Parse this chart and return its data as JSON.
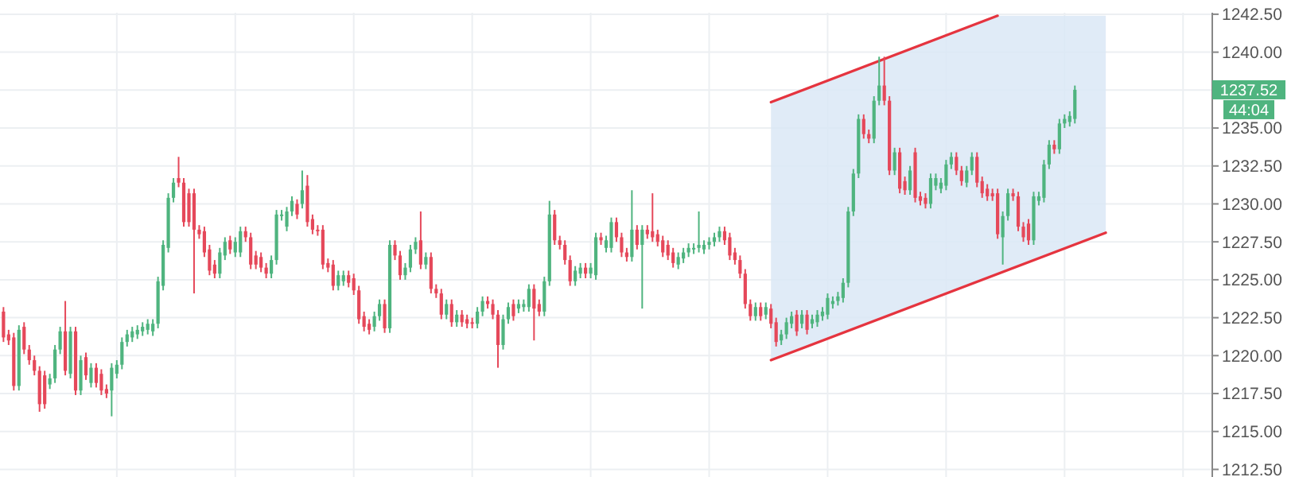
{
  "chart_data": {
    "type": "candlestick",
    "categories": [
      null,
      null,
      null,
      null,
      null,
      null,
      null,
      null,
      null,
      null,
      null,
      null,
      null,
      null,
      null,
      null,
      null,
      null,
      null,
      null,
      null,
      null,
      null,
      null,
      null,
      null,
      null,
      null,
      null,
      null,
      null,
      null,
      null,
      null,
      null,
      null,
      null,
      null,
      null,
      null,
      null,
      null,
      null,
      null,
      null,
      null,
      null,
      null,
      null,
      null,
      null,
      null,
      null,
      null,
      null,
      null,
      null,
      null,
      null,
      null,
      null,
      null,
      null,
      null,
      null,
      null,
      null,
      null,
      null,
      null,
      null,
      null,
      null,
      null,
      null,
      null,
      null,
      null,
      null,
      null,
      null,
      null,
      null,
      null,
      null,
      null,
      null,
      null,
      null,
      null,
      null,
      null,
      null,
      null,
      null,
      null,
      null,
      null,
      null,
      null,
      null,
      null,
      null,
      null,
      null,
      null,
      null,
      null,
      null,
      null,
      null,
      null,
      null,
      null,
      null,
      null,
      null,
      null,
      null,
      null,
      null,
      null,
      null,
      null,
      null,
      null,
      null,
      null,
      null,
      null,
      null,
      null,
      null,
      null,
      null,
      null,
      null,
      null,
      null,
      null,
      null,
      null,
      null,
      null,
      null,
      null,
      null,
      null,
      null,
      null,
      null,
      null,
      null,
      null,
      null,
      null,
      null,
      null,
      null,
      null,
      null,
      null,
      null,
      null,
      null,
      null,
      null,
      null,
      null,
      null,
      null,
      null,
      null,
      null,
      null,
      null,
      null,
      null,
      null,
      null,
      null,
      null,
      null,
      null,
      null,
      null,
      null,
      null,
      null,
      null,
      null,
      null,
      null,
      null,
      null,
      null,
      null,
      null,
      null,
      null,
      null,
      null,
      null,
      null,
      null,
      null,
      null,
      null,
      null,
      null,
      null,
      null,
      null,
      null,
      null,
      null,
      null,
      null,
      null,
      null,
      null,
      null,
      null,
      null,
      null,
      null,
      null,
      null,
      null,
      null,
      null,
      null,
      null,
      null,
      null
    ],
    "ohlc": [
      [
        1222.9,
        1223.2,
        1220.9,
        1221.2
      ],
      [
        1221.4,
        1221.7,
        1220.7,
        1221.0
      ],
      [
        1221.2,
        1221.5,
        1217.7,
        1218.0
      ],
      [
        1218.0,
        1222.0,
        1217.7,
        1221.7
      ],
      [
        1221.9,
        1222.2,
        1220.1,
        1220.4
      ],
      [
        1220.4,
        1220.7,
        1219.4,
        1219.7
      ],
      [
        1219.7,
        1220.0,
        1218.7,
        1219.0
      ],
      [
        1219.0,
        1219.3,
        1216.3,
        1216.8
      ],
      [
        1218.7,
        1219.0,
        1216.5,
        1216.8
      ],
      [
        1218.1,
        1218.8,
        1217.8,
        1218.5
      ],
      [
        1218.5,
        1220.7,
        1218.2,
        1220.4
      ],
      [
        1220.4,
        1221.9,
        1220.1,
        1221.6
      ],
      [
        1221.6,
        1223.6,
        1218.7,
        1219.0
      ],
      [
        1218.8,
        1221.9,
        1218.5,
        1221.6
      ],
      [
        1221.6,
        1221.9,
        1217.4,
        1217.7
      ],
      [
        1217.7,
        1220.0,
        1217.4,
        1219.7
      ],
      [
        1219.9,
        1220.2,
        1218.4,
        1218.7
      ],
      [
        1218.2,
        1219.5,
        1217.9,
        1219.2
      ],
      [
        1219.2,
        1219.5,
        1217.9,
        1218.2
      ],
      [
        1218.8,
        1219.1,
        1217.4,
        1217.7
      ],
      [
        1217.8,
        1218.1,
        1217.2,
        1217.5
      ],
      [
        1217.7,
        1219.5,
        1216.0,
        1219.2
      ],
      [
        1218.8,
        1219.7,
        1218.5,
        1219.4
      ],
      [
        1219.4,
        1221.2,
        1219.1,
        1220.9
      ],
      [
        1220.9,
        1221.7,
        1220.6,
        1221.4
      ],
      [
        1221.2,
        1221.9,
        1220.9,
        1221.6
      ],
      [
        1221.4,
        1222.0,
        1221.1,
        1221.7
      ],
      [
        1221.6,
        1222.2,
        1221.3,
        1221.9
      ],
      [
        1221.7,
        1222.4,
        1221.4,
        1222.1
      ],
      [
        1221.6,
        1222.4,
        1221.3,
        1222.1
      ],
      [
        1222.1,
        1225.2,
        1221.8,
        1224.9
      ],
      [
        1224.6,
        1227.6,
        1224.3,
        1227.3
      ],
      [
        1227.1,
        1230.7,
        1226.8,
        1230.4
      ],
      [
        1230.4,
        1231.7,
        1230.1,
        1231.4
      ],
      [
        1231.7,
        1233.1,
        1231.1,
        1231.4
      ],
      [
        1231.4,
        1231.7,
        1228.5,
        1228.8
      ],
      [
        1230.7,
        1231.0,
        1228.5,
        1228.8
      ],
      [
        1230.7,
        1231.0,
        1224.1,
        1228.3
      ],
      [
        1228.3,
        1228.6,
        1227.7,
        1228.0
      ],
      [
        1228.2,
        1228.5,
        1226.5,
        1226.8
      ],
      [
        1227.0,
        1227.3,
        1225.3,
        1225.6
      ],
      [
        1226.0,
        1226.3,
        1225.1,
        1225.4
      ],
      [
        1225.4,
        1227.1,
        1225.1,
        1226.8
      ],
      [
        1226.6,
        1227.8,
        1226.3,
        1227.5
      ],
      [
        1227.6,
        1227.9,
        1226.7,
        1227.0
      ],
      [
        1226.8,
        1227.8,
        1226.5,
        1227.5
      ],
      [
        1226.8,
        1228.5,
        1226.5,
        1228.2
      ],
      [
        1228.2,
        1228.5,
        1227.5,
        1227.8
      ],
      [
        1227.8,
        1228.1,
        1225.7,
        1226.0
      ],
      [
        1226.6,
        1226.9,
        1225.7,
        1226.0
      ],
      [
        1226.5,
        1226.8,
        1225.5,
        1225.8
      ],
      [
        1225.8,
        1226.1,
        1225.1,
        1225.4
      ],
      [
        1225.4,
        1226.6,
        1225.1,
        1226.3
      ],
      [
        1226.3,
        1229.6,
        1226.0,
        1229.3
      ],
      [
        1229.2,
        1229.6,
        1228.9,
        1229.3
      ],
      [
        1228.5,
        1229.8,
        1228.2,
        1229.5
      ],
      [
        1229.5,
        1230.5,
        1229.2,
        1230.2
      ],
      [
        1230.0,
        1230.3,
        1229.0,
        1229.3
      ],
      [
        1230.0,
        1232.2,
        1229.7,
        1230.9
      ],
      [
        1231.2,
        1231.9,
        1228.5,
        1228.8
      ],
      [
        1229.0,
        1229.3,
        1228.0,
        1228.3
      ],
      [
        1228.3,
        1228.6,
        1227.9,
        1228.2
      ],
      [
        1228.3,
        1228.6,
        1225.7,
        1226.0
      ],
      [
        1226.1,
        1226.4,
        1225.5,
        1225.8
      ],
      [
        1226.0,
        1226.3,
        1224.3,
        1224.6
      ],
      [
        1224.6,
        1225.6,
        1224.3,
        1225.3
      ],
      [
        1224.9,
        1225.6,
        1224.6,
        1225.3
      ],
      [
        1225.3,
        1225.6,
        1224.5,
        1224.8
      ],
      [
        1225.1,
        1225.4,
        1224.0,
        1224.3
      ],
      [
        1224.3,
        1224.6,
        1222.1,
        1222.4
      ],
      [
        1222.6,
        1222.9,
        1221.6,
        1221.9
      ],
      [
        1222.1,
        1222.4,
        1221.4,
        1221.7
      ],
      [
        1221.9,
        1222.9,
        1221.6,
        1222.6
      ],
      [
        1222.6,
        1223.7,
        1222.3,
        1223.4
      ],
      [
        1223.4,
        1223.7,
        1221.5,
        1221.8
      ],
      [
        1221.8,
        1227.6,
        1221.5,
        1227.3
      ],
      [
        1227.3,
        1227.6,
        1226.3,
        1226.6
      ],
      [
        1226.6,
        1226.9,
        1225.0,
        1225.3
      ],
      [
        1225.3,
        1226.1,
        1225.0,
        1225.8
      ],
      [
        1225.8,
        1227.3,
        1225.5,
        1227.0
      ],
      [
        1227.0,
        1227.8,
        1226.7,
        1227.5
      ],
      [
        1227.6,
        1229.5,
        1225.7,
        1226.0
      ],
      [
        1226.0,
        1226.8,
        1225.7,
        1226.5
      ],
      [
        1226.5,
        1226.8,
        1224.1,
        1224.4
      ],
      [
        1224.4,
        1224.7,
        1223.8,
        1224.1
      ],
      [
        1224.1,
        1224.4,
        1222.4,
        1222.7
      ],
      [
        1222.7,
        1223.7,
        1222.4,
        1223.4
      ],
      [
        1223.4,
        1223.7,
        1221.9,
        1222.2
      ],
      [
        1222.2,
        1223.0,
        1221.9,
        1222.7
      ],
      [
        1222.7,
        1223.0,
        1221.9,
        1222.2
      ],
      [
        1222.4,
        1222.7,
        1221.8,
        1222.1
      ],
      [
        1222.2,
        1222.5,
        1221.8,
        1222.1
      ],
      [
        1222.1,
        1223.2,
        1221.8,
        1222.9
      ],
      [
        1222.9,
        1223.9,
        1222.6,
        1223.6
      ],
      [
        1223.6,
        1223.9,
        1223.1,
        1223.4
      ],
      [
        1223.4,
        1223.7,
        1222.4,
        1222.7
      ],
      [
        1222.7,
        1223.0,
        1219.2,
        1220.7
      ],
      [
        1220.7,
        1222.7,
        1220.4,
        1222.4
      ],
      [
        1222.4,
        1223.5,
        1222.1,
        1223.2
      ],
      [
        1223.4,
        1223.7,
        1222.3,
        1222.6
      ],
      [
        1223.1,
        1223.7,
        1222.8,
        1223.4
      ],
      [
        1223.2,
        1223.7,
        1222.9,
        1223.4
      ],
      [
        1223.2,
        1224.7,
        1222.9,
        1224.4
      ],
      [
        1224.4,
        1224.7,
        1221.0,
        1223.1
      ],
      [
        1223.4,
        1223.7,
        1222.6,
        1222.9
      ],
      [
        1222.9,
        1225.2,
        1222.6,
        1224.9
      ],
      [
        1224.9,
        1230.2,
        1224.6,
        1229.3
      ],
      [
        1229.3,
        1229.6,
        1227.3,
        1227.6
      ],
      [
        1227.6,
        1227.9,
        1227.0,
        1227.3
      ],
      [
        1227.3,
        1227.6,
        1226.0,
        1226.3
      ],
      [
        1226.3,
        1226.6,
        1224.6,
        1224.9
      ],
      [
        1224.9,
        1225.9,
        1224.6,
        1225.6
      ],
      [
        1225.4,
        1226.1,
        1225.1,
        1225.8
      ],
      [
        1225.8,
        1226.1,
        1225.1,
        1225.4
      ],
      [
        1225.4,
        1226.1,
        1225.1,
        1225.8
      ],
      [
        1225.3,
        1228.1,
        1225.0,
        1227.8
      ],
      [
        1227.8,
        1228.1,
        1227.3,
        1227.6
      ],
      [
        1227.1,
        1227.9,
        1226.8,
        1227.6
      ],
      [
        1227.1,
        1229.1,
        1226.8,
        1228.8
      ],
      [
        1228.8,
        1229.1,
        1227.5,
        1227.8
      ],
      [
        1227.8,
        1228.1,
        1226.5,
        1226.8
      ],
      [
        1226.8,
        1227.1,
        1226.2,
        1226.5
      ],
      [
        1226.5,
        1230.9,
        1226.2,
        1228.3
      ],
      [
        1228.3,
        1228.6,
        1227.0,
        1227.3
      ],
      [
        1227.3,
        1228.6,
        1223.1,
        1228.3
      ],
      [
        1228.3,
        1228.6,
        1227.7,
        1228.0
      ],
      [
        1228.2,
        1230.7,
        1227.5,
        1227.8
      ],
      [
        1228.0,
        1228.3,
        1227.2,
        1227.5
      ],
      [
        1227.6,
        1227.9,
        1226.5,
        1226.8
      ],
      [
        1227.3,
        1227.6,
        1226.3,
        1226.6
      ],
      [
        1226.8,
        1227.1,
        1225.8,
        1226.1
      ],
      [
        1226.0,
        1226.8,
        1225.7,
        1226.5
      ],
      [
        1226.4,
        1227.1,
        1226.1,
        1226.8
      ],
      [
        1226.8,
        1227.4,
        1226.5,
        1227.1
      ],
      [
        1227.0,
        1227.4,
        1226.7,
        1227.1
      ],
      [
        1227.1,
        1229.5,
        1226.8,
        1227.3
      ],
      [
        1227.0,
        1227.6,
        1226.7,
        1227.3
      ],
      [
        1227.3,
        1227.8,
        1227.0,
        1227.5
      ],
      [
        1227.5,
        1228.1,
        1227.2,
        1227.8
      ],
      [
        1227.8,
        1228.5,
        1227.5,
        1228.2
      ],
      [
        1228.2,
        1228.5,
        1227.3,
        1227.6
      ],
      [
        1227.8,
        1228.1,
        1226.3,
        1226.6
      ],
      [
        1226.8,
        1227.1,
        1226.0,
        1226.3
      ],
      [
        1226.3,
        1226.6,
        1225.1,
        1225.4
      ],
      [
        1225.4,
        1225.7,
        1223.1,
        1223.4
      ],
      [
        1223.4,
        1223.7,
        1222.3,
        1222.6
      ],
      [
        1222.6,
        1223.5,
        1222.3,
        1223.2
      ],
      [
        1223.2,
        1223.5,
        1222.3,
        1222.6
      ],
      [
        1222.7,
        1223.5,
        1222.4,
        1223.2
      ],
      [
        1223.1,
        1223.4,
        1221.8,
        1222.1
      ],
      [
        1222.2,
        1222.5,
        1220.6,
        1220.9
      ],
      [
        1221.0,
        1221.7,
        1220.7,
        1221.4
      ],
      [
        1221.4,
        1222.5,
        1221.1,
        1222.2
      ],
      [
        1222.1,
        1222.9,
        1221.8,
        1222.6
      ],
      [
        1222.7,
        1223.0,
        1221.3,
        1221.6
      ],
      [
        1222.1,
        1223.0,
        1221.8,
        1222.7
      ],
      [
        1222.7,
        1223.0,
        1221.4,
        1221.7
      ],
      [
        1222.1,
        1222.7,
        1221.8,
        1222.4
      ],
      [
        1222.2,
        1223.0,
        1221.9,
        1222.7
      ],
      [
        1222.6,
        1223.2,
        1222.3,
        1222.9
      ],
      [
        1222.7,
        1224.1,
        1222.4,
        1223.8
      ],
      [
        1223.4,
        1223.9,
        1223.1,
        1223.6
      ],
      [
        1223.6,
        1224.2,
        1223.3,
        1223.9
      ],
      [
        1223.8,
        1225.1,
        1223.5,
        1224.8
      ],
      [
        1224.8,
        1229.8,
        1224.5,
        1229.5
      ],
      [
        1229.5,
        1232.3,
        1229.2,
        1232.0
      ],
      [
        1232.0,
        1235.9,
        1231.7,
        1235.6
      ],
      [
        1235.6,
        1235.9,
        1234.3,
        1234.6
      ],
      [
        1234.6,
        1234.9,
        1234.0,
        1234.3
      ],
      [
        1234.3,
        1237.1,
        1234.0,
        1236.8
      ],
      [
        1236.8,
        1239.7,
        1236.5,
        1237.8
      ],
      [
        1237.8,
        1239.7,
        1236.5,
        1236.8
      ],
      [
        1236.8,
        1237.1,
        1231.9,
        1232.2
      ],
      [
        1232.2,
        1233.7,
        1231.9,
        1233.4
      ],
      [
        1233.4,
        1233.7,
        1230.7,
        1231.0
      ],
      [
        1231.5,
        1231.8,
        1230.6,
        1230.9
      ],
      [
        1230.9,
        1232.5,
        1230.6,
        1232.2
      ],
      [
        1233.4,
        1233.7,
        1230.1,
        1230.4
      ],
      [
        1230.5,
        1230.8,
        1229.9,
        1230.2
      ],
      [
        1230.4,
        1230.7,
        1229.7,
        1230.0
      ],
      [
        1230.0,
        1232.0,
        1229.7,
        1231.7
      ],
      [
        1231.2,
        1232.0,
        1230.9,
        1231.7
      ],
      [
        1231.0,
        1231.7,
        1230.7,
        1231.4
      ],
      [
        1231.2,
        1232.9,
        1230.9,
        1232.6
      ],
      [
        1232.6,
        1233.4,
        1232.3,
        1233.1
      ],
      [
        1233.1,
        1233.4,
        1231.9,
        1232.2
      ],
      [
        1232.2,
        1232.5,
        1231.2,
        1231.5
      ],
      [
        1231.4,
        1232.5,
        1231.1,
        1232.2
      ],
      [
        1232.2,
        1233.4,
        1231.9,
        1233.1
      ],
      [
        1233.1,
        1233.4,
        1231.1,
        1231.4
      ],
      [
        1231.5,
        1231.8,
        1230.4,
        1230.7
      ],
      [
        1231.0,
        1231.3,
        1230.2,
        1230.5
      ],
      [
        1230.7,
        1231.0,
        1230.2,
        1230.5
      ],
      [
        1230.7,
        1231.0,
        1227.7,
        1228.0
      ],
      [
        1227.8,
        1229.5,
        1226.0,
        1229.2
      ],
      [
        1229.2,
        1231.0,
        1228.9,
        1230.7
      ],
      [
        1230.7,
        1231.0,
        1230.2,
        1230.5
      ],
      [
        1230.5,
        1230.8,
        1228.2,
        1228.5
      ],
      [
        1228.5,
        1228.8,
        1227.5,
        1227.8
      ],
      [
        1228.7,
        1229.0,
        1227.3,
        1227.6
      ],
      [
        1227.6,
        1230.8,
        1227.3,
        1230.5
      ],
      [
        1230.2,
        1230.8,
        1229.9,
        1230.5
      ],
      [
        1230.4,
        1232.9,
        1230.1,
        1232.6
      ],
      [
        1232.6,
        1234.2,
        1232.3,
        1233.9
      ],
      [
        1233.9,
        1234.2,
        1233.3,
        1233.6
      ],
      [
        1233.6,
        1235.6,
        1233.3,
        1235.3
      ],
      [
        1235.3,
        1235.9,
        1235.0,
        1235.6
      ],
      [
        1235.4,
        1236.1,
        1235.1,
        1235.8
      ],
      [
        1235.6,
        1237.8,
        1235.3,
        1237.52
      ],
      null,
      null,
      null,
      null,
      null,
      null,
      null,
      null,
      null,
      null,
      null,
      null,
      null,
      null,
      null,
      null,
      null,
      null,
      null,
      null,
      null,
      null,
      null,
      null,
      null,
      null
    ],
    "series": [
      {
        "type": "line",
        "color": "#e5343f",
        "values": [
          null,
          null,
          null,
          null,
          null,
          null,
          null,
          null,
          null,
          null,
          null,
          null,
          null,
          null,
          null,
          null,
          null,
          null,
          null,
          null,
          null,
          null,
          null,
          null,
          null,
          null,
          null,
          null,
          null,
          null,
          null,
          null,
          null,
          null,
          null,
          null,
          null,
          null,
          null,
          null,
          null,
          null,
          null,
          null,
          null,
          null,
          null,
          null,
          null,
          null,
          null,
          null,
          null,
          null,
          null,
          null,
          null,
          null,
          null,
          null,
          null,
          null,
          null,
          null,
          null,
          null,
          null,
          null,
          null,
          null,
          null,
          null,
          null,
          null,
          null,
          null,
          null,
          null,
          null,
          null,
          null,
          null,
          null,
          null,
          null,
          null,
          null,
          null,
          null,
          null,
          null,
          null,
          null,
          null,
          null,
          null,
          null,
          null,
          null,
          null,
          null,
          null,
          null,
          null,
          null,
          null,
          null,
          null,
          null,
          null,
          null,
          null,
          null,
          null,
          null,
          null,
          null,
          null,
          null,
          null,
          null,
          null,
          null,
          null,
          null,
          null,
          null,
          null,
          null,
          null,
          null,
          null,
          null,
          null,
          null,
          null,
          null,
          null,
          null,
          null,
          null,
          null,
          null,
          null,
          null,
          null,
          null,
          null,
          null,
          1236.7,
          null,
          null,
          null,
          null,
          null,
          null,
          null,
          null,
          null,
          null,
          null,
          null,
          null,
          null,
          null,
          null,
          null,
          null,
          null,
          null,
          null,
          null,
          null,
          null,
          null,
          null,
          null,
          null,
          null,
          null,
          null,
          null,
          null,
          null,
          null,
          null,
          null,
          null,
          null,
          null,
          null,
          null,
          null,
          1242.4,
          null,
          null,
          null,
          null,
          null,
          null,
          null,
          null,
          null,
          null,
          null,
          null,
          null,
          null,
          null,
          null,
          null,
          null,
          null,
          null,
          null,
          null,
          null,
          null,
          null,
          null,
          null,
          null,
          null,
          null,
          null,
          null,
          null,
          null,
          null,
          null,
          null,
          null,
          null,
          null,
          null
        ]
      },
      {
        "type": "line",
        "color": "#e5343f",
        "values": [
          null,
          null,
          null,
          null,
          null,
          null,
          null,
          null,
          null,
          null,
          null,
          null,
          null,
          null,
          null,
          null,
          null,
          null,
          null,
          null,
          null,
          null,
          null,
          null,
          null,
          null,
          null,
          null,
          null,
          null,
          null,
          null,
          null,
          null,
          null,
          null,
          null,
          null,
          null,
          null,
          null,
          null,
          null,
          null,
          null,
          null,
          null,
          null,
          null,
          null,
          null,
          null,
          null,
          null,
          null,
          null,
          null,
          null,
          null,
          null,
          null,
          null,
          null,
          null,
          null,
          null,
          null,
          null,
          null,
          null,
          null,
          null,
          null,
          null,
          null,
          null,
          null,
          null,
          null,
          null,
          null,
          null,
          null,
          null,
          null,
          null,
          null,
          null,
          null,
          null,
          null,
          null,
          null,
          null,
          null,
          null,
          null,
          null,
          null,
          null,
          null,
          null,
          null,
          null,
          null,
          null,
          null,
          null,
          null,
          null,
          null,
          null,
          null,
          null,
          null,
          null,
          null,
          null,
          null,
          null,
          null,
          null,
          null,
          null,
          null,
          null,
          null,
          null,
          null,
          null,
          null,
          null,
          null,
          null,
          null,
          null,
          null,
          null,
          null,
          null,
          null,
          null,
          null,
          null,
          null,
          null,
          null,
          null,
          null,
          1219.7,
          null,
          null,
          null,
          null,
          null,
          null,
          null,
          null,
          null,
          null,
          null,
          null,
          null,
          null,
          null,
          null,
          null,
          null,
          null,
          null,
          null,
          null,
          null,
          null,
          null,
          null,
          null,
          null,
          null,
          null,
          null,
          null,
          null,
          null,
          null,
          null,
          null,
          null,
          null,
          null,
          null,
          null,
          null,
          null,
          null,
          null,
          null,
          null,
          null,
          null,
          null,
          null,
          null,
          null,
          null,
          null,
          null,
          null,
          null,
          null,
          null,
          null,
          null,
          null,
          1228.1,
          null,
          null,
          null,
          null,
          null,
          null,
          null,
          null,
          null,
          null,
          null,
          null,
          null,
          null,
          null,
          null,
          null,
          null,
          null,
          null
        ]
      }
    ],
    "ylim": [
      1212,
      1242.6
    ],
    "yticks": [
      {
        "value": 1212.5,
        "label": "1212.50"
      },
      {
        "value": 1215,
        "label": "1215.00"
      },
      {
        "value": 1217.5,
        "label": "1217.50"
      },
      {
        "value": 1220,
        "label": "1220.00"
      },
      {
        "value": 1222.5,
        "label": "1222.50"
      },
      {
        "value": 1225,
        "label": "1225.00"
      },
      {
        "value": 1227.5,
        "label": "1227.50"
      },
      {
        "value": 1230,
        "label": "1230.00"
      },
      {
        "value": 1232.5,
        "label": "1232.50"
      },
      {
        "value": 1235,
        "label": "1235.00"
      },
      {
        "value": 1237.5,
        "label": null
      },
      {
        "value": 1240,
        "label": "1240.00"
      },
      {
        "value": 1242.5,
        "label": "1242.50"
      }
    ],
    "grid": true,
    "tick_labels": "y",
    "annotations": [
      "1237.52",
      "44:04"
    ]
  }
}
